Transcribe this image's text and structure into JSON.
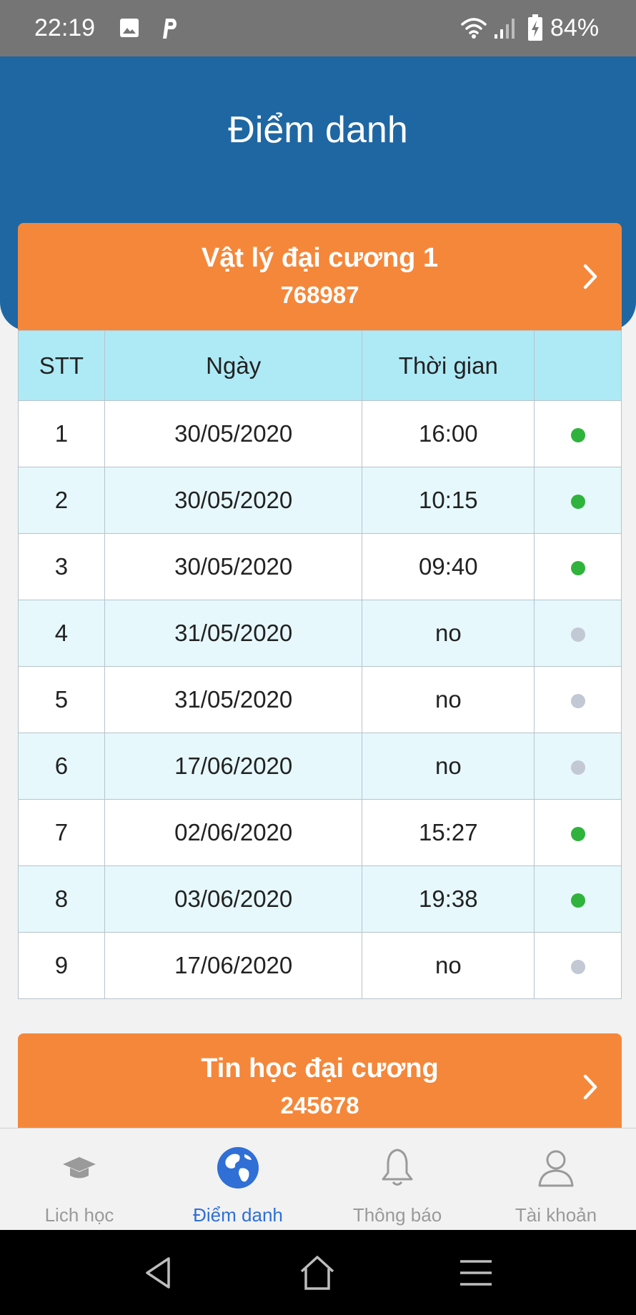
{
  "status_bar": {
    "time": "22:19",
    "battery_percent": "84%",
    "icons": [
      "image-icon",
      "p-app-icon",
      "wifi-icon",
      "signal-icon",
      "battery-charging-icon"
    ]
  },
  "header": {
    "title": "Điểm danh"
  },
  "courses": [
    {
      "name": "Vật lý đại cương 1",
      "code": "768987",
      "table": {
        "headers": [
          "STT",
          "Ngày",
          "Thời gian",
          ""
        ],
        "rows": [
          {
            "stt": "1",
            "date": "30/05/2020",
            "time": "16:00",
            "present": true
          },
          {
            "stt": "2",
            "date": "30/05/2020",
            "time": "10:15",
            "present": true
          },
          {
            "stt": "3",
            "date": "30/05/2020",
            "time": "09:40",
            "present": true
          },
          {
            "stt": "4",
            "date": "31/05/2020",
            "time": "no",
            "present": false
          },
          {
            "stt": "5",
            "date": "31/05/2020",
            "time": "no",
            "present": false
          },
          {
            "stt": "6",
            "date": "17/06/2020",
            "time": "no",
            "present": false
          },
          {
            "stt": "7",
            "date": "02/06/2020",
            "time": "15:27",
            "present": true
          },
          {
            "stt": "8",
            "date": "03/06/2020",
            "time": "19:38",
            "present": true
          },
          {
            "stt": "9",
            "date": "17/06/2020",
            "time": "no",
            "present": false
          }
        ]
      }
    },
    {
      "name": "Tin học đại cương",
      "code": "245678"
    }
  ],
  "tabs": [
    {
      "label": "Lich học",
      "icon": "graduation-cap-icon",
      "active": false
    },
    {
      "label": "Điểm danh",
      "icon": "globe-icon",
      "active": true
    },
    {
      "label": "Thông báo",
      "icon": "bell-icon",
      "active": false
    },
    {
      "label": "Tài khoản",
      "icon": "user-icon",
      "active": false
    }
  ],
  "colors": {
    "header_bg": "#1f67a3",
    "card_bg": "#f5873a",
    "table_header_bg": "#aeeaf6",
    "row_alt_bg": "#e6f8fc",
    "present_dot": "#2fb33c",
    "absent_dot": "#c2c8d4",
    "active_tab": "#2f6fd6"
  }
}
